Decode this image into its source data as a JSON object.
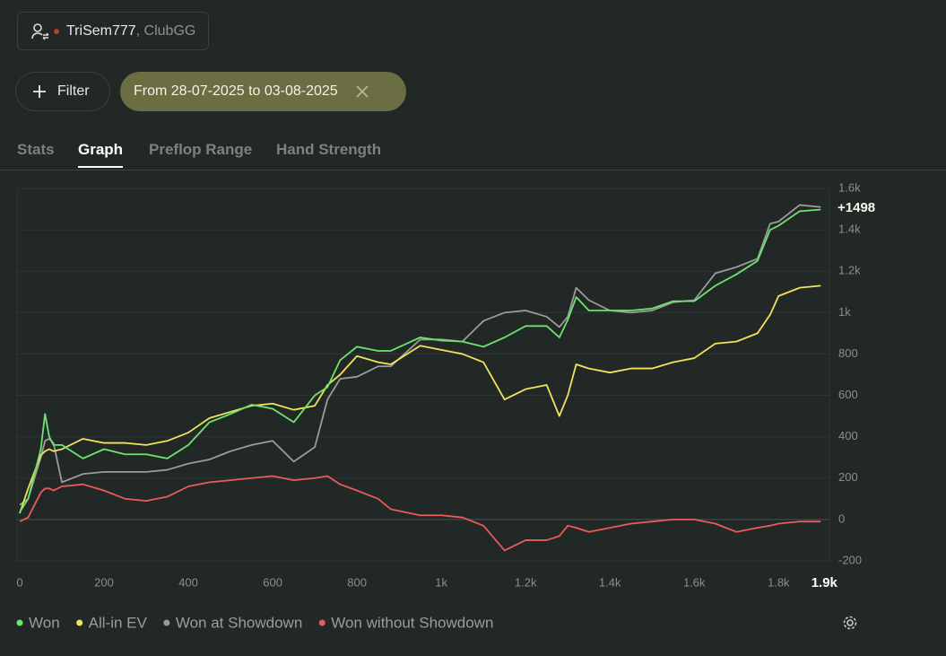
{
  "account": {
    "name": "TriSem777",
    "club": ", ClubGG"
  },
  "filter": {
    "button": "Filter",
    "date_range": "From 28-07-2025 to 03-08-2025"
  },
  "tabs": [
    "Stats",
    "Graph",
    "Preflop Range",
    "Hand Strength"
  ],
  "active_tab": "Graph",
  "chart_data": {
    "type": "line",
    "end_label": "+1498",
    "x": [
      0,
      20,
      50,
      60,
      70,
      80,
      100,
      150,
      200,
      250,
      300,
      350,
      400,
      450,
      500,
      550,
      600,
      650,
      700,
      730,
      760,
      800,
      850,
      880,
      950,
      1000,
      1050,
      1100,
      1150,
      1200,
      1250,
      1280,
      1300,
      1320,
      1350,
      1400,
      1450,
      1500,
      1550,
      1600,
      1650,
      1700,
      1750,
      1780,
      1800,
      1850,
      1900
    ],
    "series": [
      {
        "name": "Won",
        "color": "#6ee36e",
        "values": [
          35,
          100,
          340,
          510,
          400,
          360,
          360,
          295,
          340,
          315,
          315,
          295,
          360,
          470,
          510,
          555,
          535,
          470,
          600,
          640,
          770,
          835,
          815,
          815,
          880,
          865,
          860,
          835,
          880,
          935,
          935,
          880,
          965,
          1075,
          1010,
          1010,
          1010,
          1020,
          1055,
          1055,
          1130,
          1185,
          1250,
          1400,
          1420,
          1490,
          1498
        ]
      },
      {
        "name": "All-in EV",
        "color": "#f2e35c",
        "values": [
          30,
          150,
          310,
          330,
          340,
          330,
          340,
          390,
          370,
          370,
          360,
          380,
          420,
          490,
          520,
          550,
          560,
          530,
          550,
          650,
          700,
          790,
          760,
          750,
          840,
          820,
          800,
          760,
          580,
          630,
          650,
          500,
          600,
          750,
          730,
          710,
          730,
          730,
          760,
          780,
          850,
          860,
          900,
          990,
          1080,
          1120,
          1130
        ]
      },
      {
        "name": "Won at Showdown",
        "color": "#9b9b9b",
        "values": [
          70,
          100,
          300,
          380,
          390,
          370,
          180,
          220,
          230,
          230,
          230,
          240,
          270,
          290,
          330,
          360,
          380,
          280,
          350,
          580,
          680,
          690,
          740,
          740,
          870,
          870,
          860,
          960,
          1000,
          1010,
          980,
          930,
          980,
          1120,
          1060,
          1010,
          1000,
          1010,
          1050,
          1060,
          1190,
          1220,
          1260,
          1430,
          1440,
          1520,
          1510
        ]
      },
      {
        "name": "Won without Showdown",
        "color": "#ea5b5b",
        "values": [
          -10,
          10,
          130,
          150,
          150,
          140,
          160,
          170,
          140,
          100,
          90,
          110,
          160,
          180,
          190,
          200,
          210,
          190,
          200,
          210,
          170,
          140,
          100,
          50,
          20,
          20,
          10,
          -30,
          -150,
          -100,
          -100,
          -80,
          -30,
          -40,
          -60,
          -40,
          -20,
          -10,
          0,
          0,
          -20,
          -60,
          -40,
          -30,
          -20,
          -10,
          -10
        ]
      }
    ],
    "xlim": [
      0,
      1910
    ],
    "xticks": [
      0,
      200,
      400,
      600,
      800,
      {
        "value": 1000,
        "label": "1k"
      },
      {
        "value": 1200,
        "label": "1.2k"
      },
      {
        "value": 1400,
        "label": "1.4k"
      },
      {
        "value": 1600,
        "label": "1.6k"
      },
      {
        "value": 1800,
        "label": "1.8k"
      },
      {
        "value": 1900,
        "label": "1.9k"
      }
    ],
    "ylim": [
      -200,
      1600
    ],
    "yticks": [
      -200,
      0,
      200,
      400,
      600,
      800,
      {
        "value": 1000,
        "label": "1k"
      },
      {
        "value": 1200,
        "label": "1.2k"
      },
      {
        "value": 1400,
        "label": "1.4k"
      },
      {
        "value": 1600,
        "label": "1.6k"
      }
    ],
    "grid": true
  }
}
